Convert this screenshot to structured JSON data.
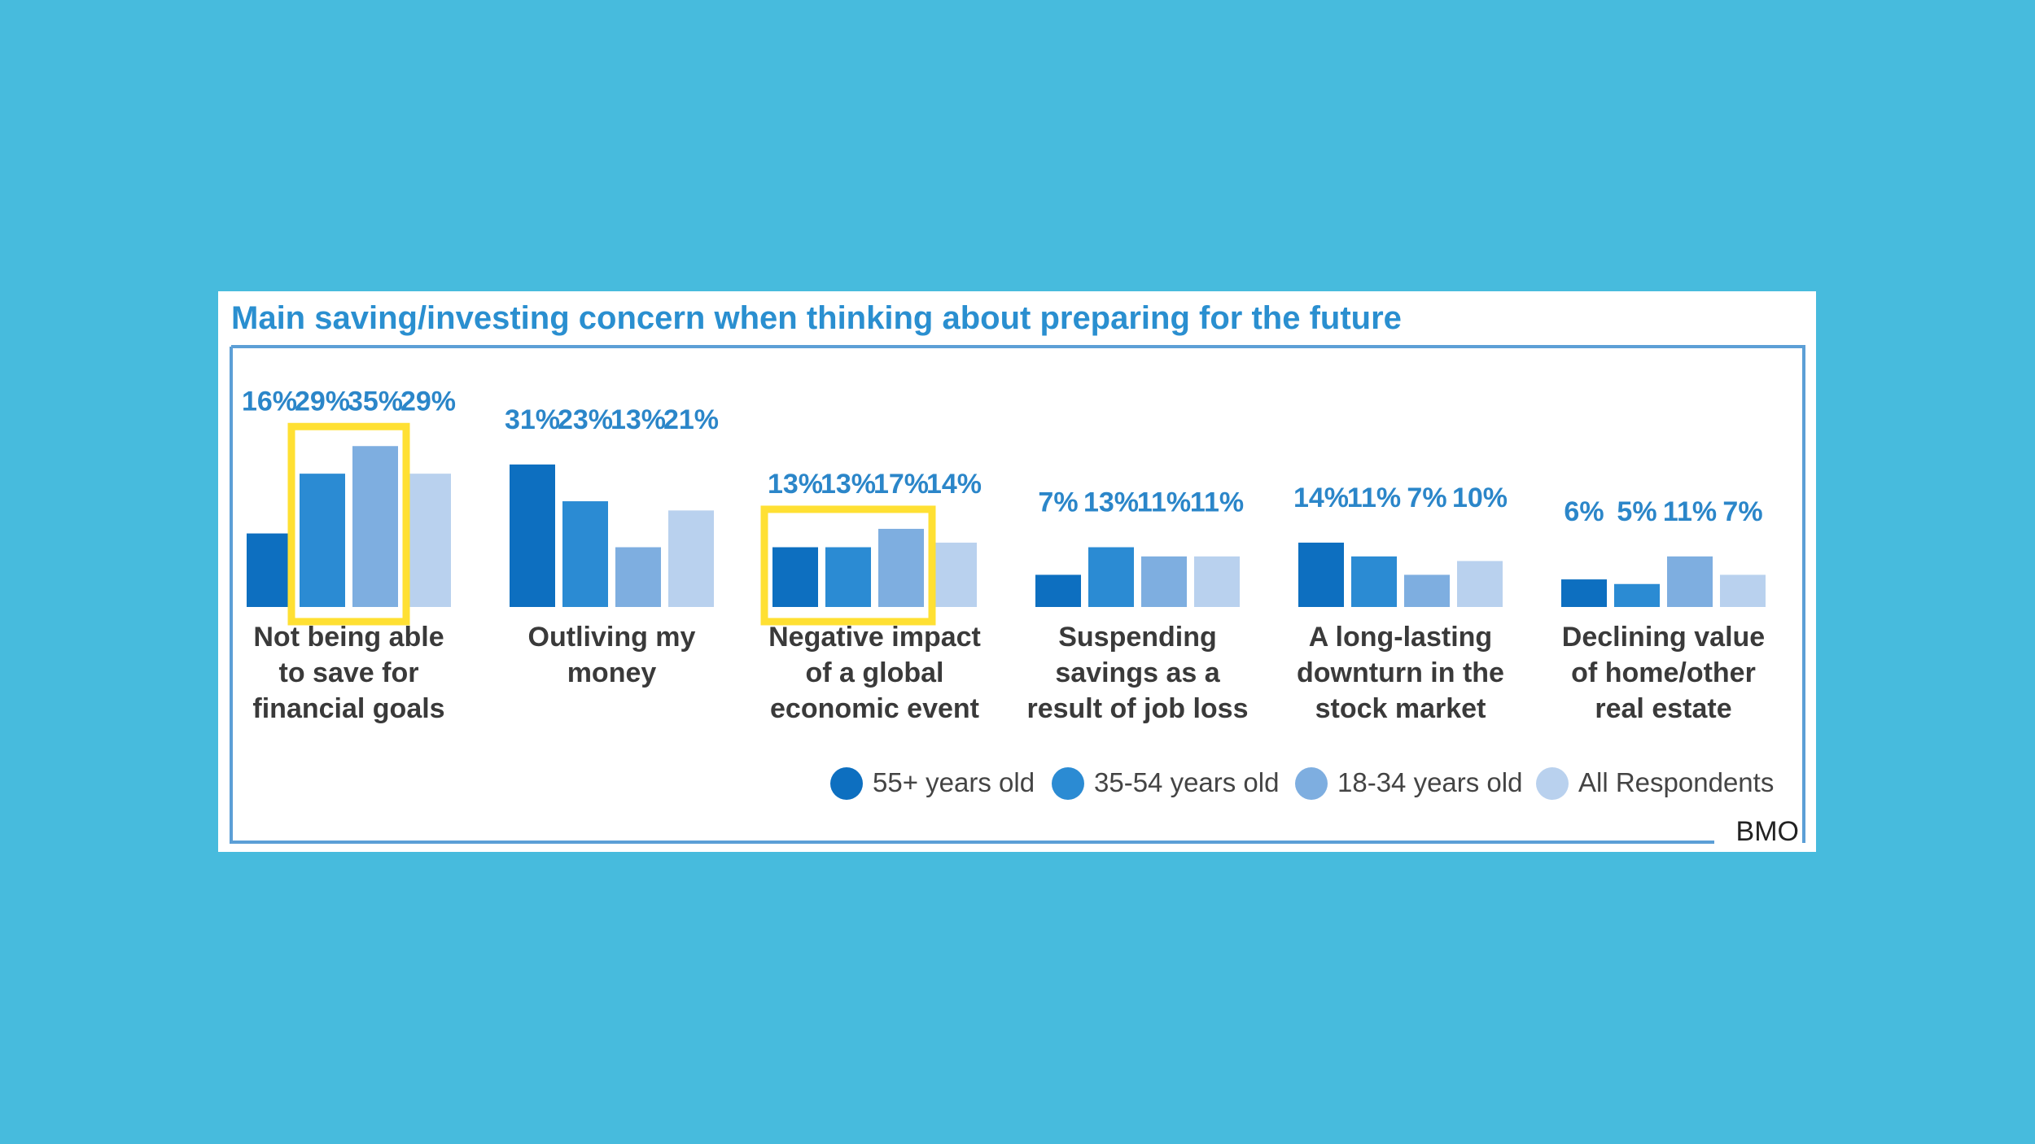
{
  "chart_data": {
    "type": "bar",
    "title": "Main saving/investing concern when thinking about preparing for the future",
    "categories": [
      [
        "Not being able",
        "to save for",
        "financial goals"
      ],
      [
        "Outliving my",
        "money"
      ],
      [
        "Negative impact",
        "of a global",
        "economic event"
      ],
      [
        "Suspending",
        "savings as a",
        "result of job loss"
      ],
      [
        "A long-lasting",
        "downturn in the",
        "stock market"
      ],
      [
        "Declining value",
        "of home/other",
        "real estate"
      ]
    ],
    "series": [
      {
        "name": "55+ years old",
        "color": "#0d6fc0",
        "values": [
          16,
          31,
          13,
          7,
          14,
          6
        ],
        "labels": [
          "16%",
          "31%",
          "13%",
          "7%",
          "14%",
          "6%"
        ]
      },
      {
        "name": "35-54 years old",
        "color": "#2b8bd3",
        "values": [
          29,
          23,
          13,
          13,
          11,
          5
        ],
        "labels": [
          "29%",
          "23%",
          "13%",
          "13%",
          "11%",
          "5%"
        ]
      },
      {
        "name": "18-34 years old",
        "color": "#7eaee0",
        "values": [
          35,
          13,
          17,
          11,
          7,
          11
        ],
        "labels": [
          "35%",
          "13%",
          "17%",
          "11%",
          "7%",
          "11%"
        ]
      },
      {
        "name": "All Respondents",
        "color": "#b9d1ee",
        "values": [
          29,
          21,
          14,
          11,
          10,
          7
        ],
        "labels": [
          "29%",
          "21%",
          "14%",
          "11%",
          "10%",
          "7%"
        ]
      }
    ],
    "highlights": [
      {
        "category_index": 0,
        "series_from": 1,
        "series_to": 2,
        "color": "#ffe033"
      },
      {
        "category_index": 2,
        "series_from": 0,
        "series_to": 2,
        "color": "#ffe033"
      }
    ],
    "legend_position": "bottom-right",
    "grid": false,
    "frame_color": "#5c9fd6"
  },
  "source": "BMO"
}
